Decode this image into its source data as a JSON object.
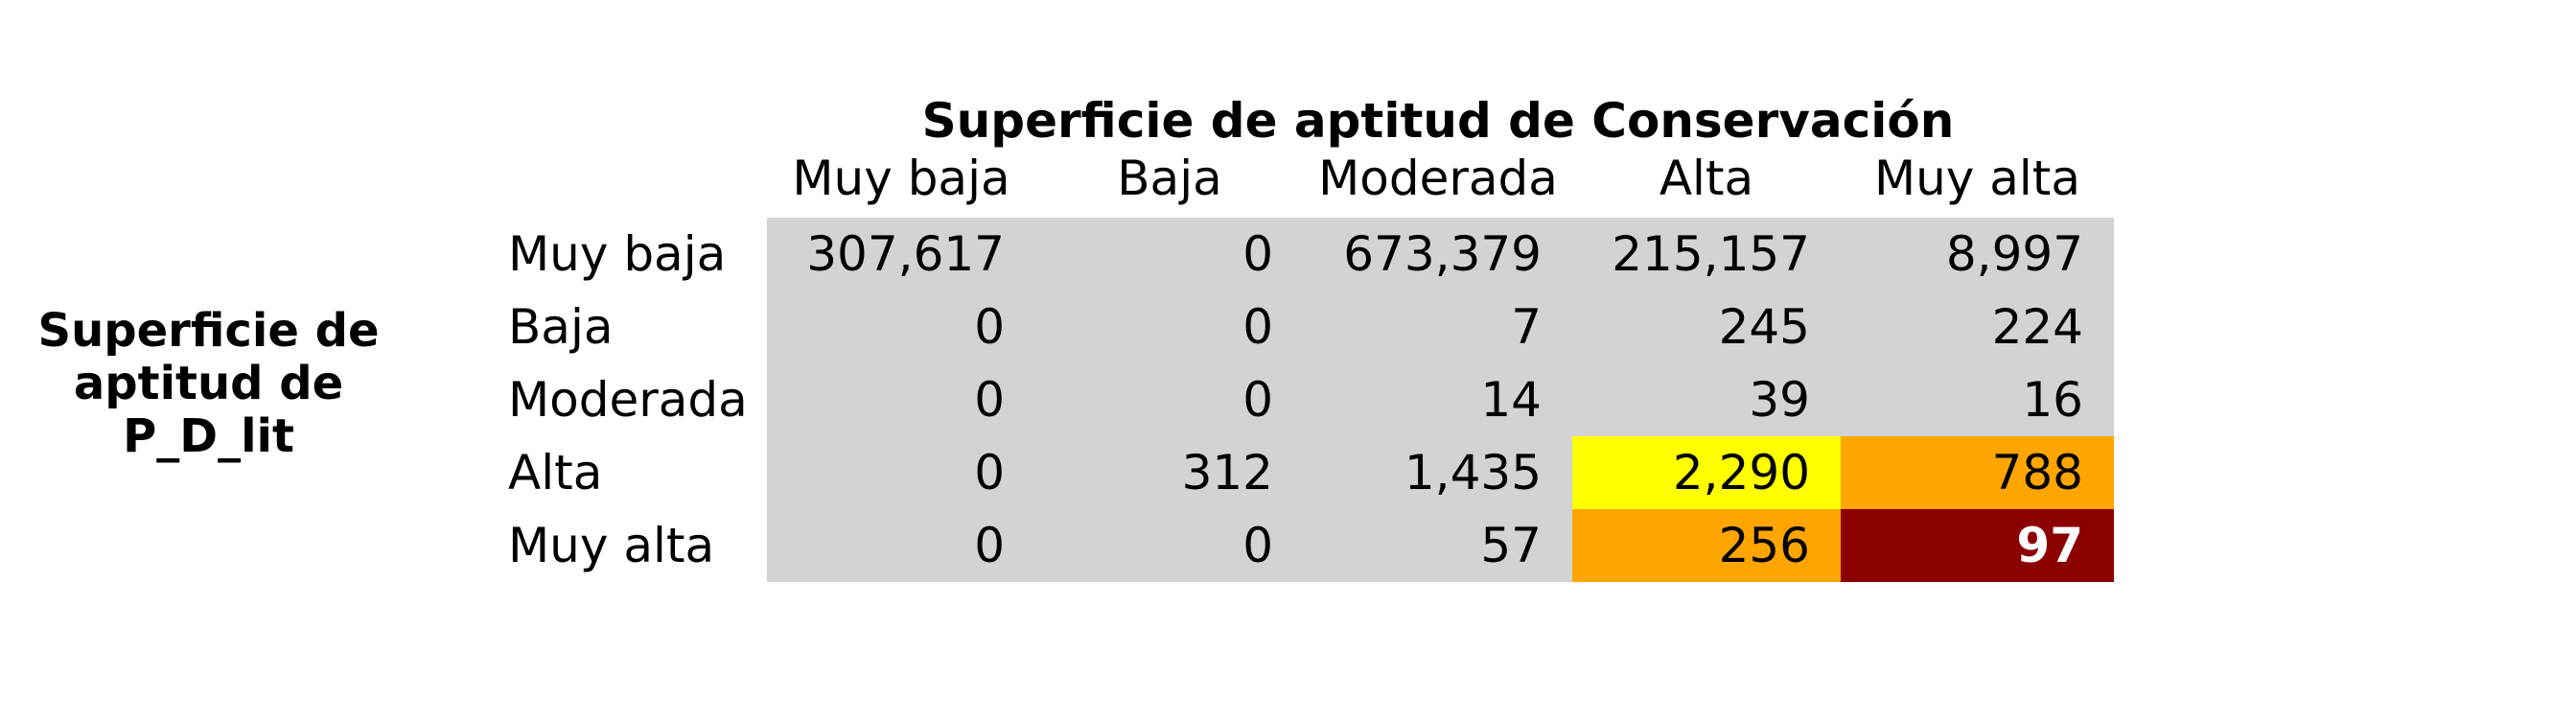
{
  "chart_data": {
    "type": "heatmap",
    "title": "Superficie de aptitud de Conservación",
    "row_title": "Superficie de aptitud de P_D_lit",
    "row_title_lines": [
      "Superficie de",
      "aptitud de",
      "P_D_lit"
    ],
    "columns": [
      "Muy baja",
      "Baja",
      "Moderada",
      "Alta",
      "Muy alta"
    ],
    "rows": [
      "Muy baja",
      "Baja",
      "Moderada",
      "Alta",
      "Muy alta"
    ],
    "values": [
      [
        "307,617",
        "0",
        "673,379",
        "215,157",
        "8,997"
      ],
      [
        "0",
        "0",
        "7",
        "245",
        "224"
      ],
      [
        "0",
        "0",
        "14",
        "39",
        "16"
      ],
      [
        "0",
        "312",
        "1,435",
        "2,290",
        "788"
      ],
      [
        "0",
        "0",
        "57",
        "256",
        "97"
      ]
    ],
    "highlights": {
      "3": {
        "3": "#ffff00",
        "4": "#ffa500"
      },
      "4": {
        "3": "#ffa500",
        "4": "#8b0000"
      }
    },
    "default_cell_color": "#d3d3d3",
    "highlight_text_color": "#ffffff"
  }
}
